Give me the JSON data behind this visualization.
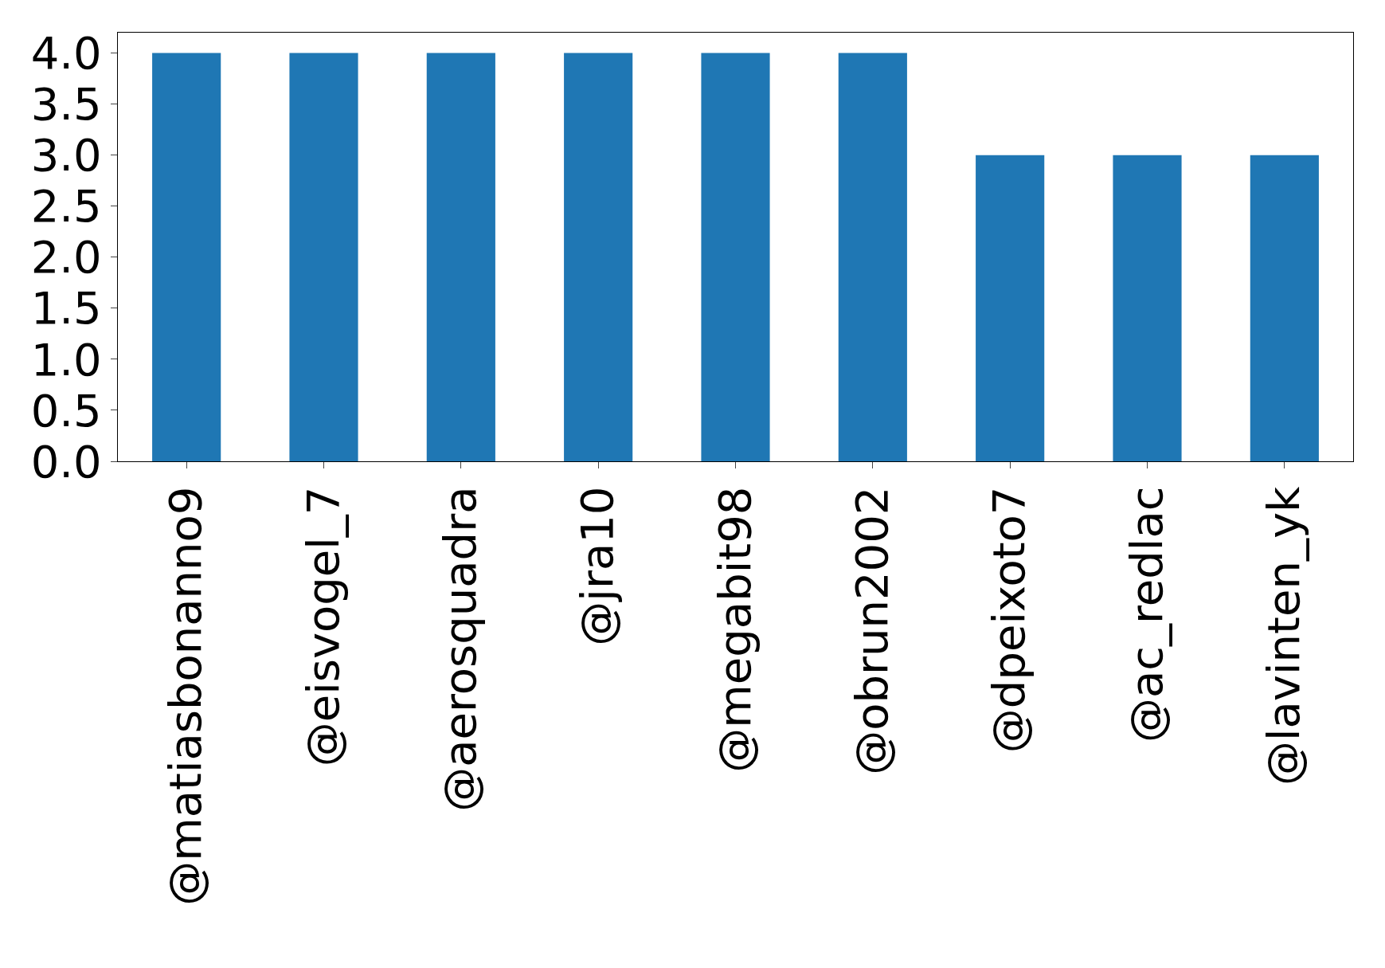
{
  "chart_data": {
    "type": "bar",
    "categories": [
      "@matiasbonanno9",
      "@eisvogel_7",
      "@aerosquadra",
      "@jra10",
      "@megabit98",
      "@obrun2002",
      "@dpeixoto7",
      "@ac_redlac",
      "@lavinten_yk"
    ],
    "values": [
      4,
      4,
      4,
      4,
      4,
      4,
      3,
      3,
      3
    ],
    "color": "#1f77b4",
    "ylim": [
      0,
      4.2
    ],
    "yticks": [
      {
        "value": 0,
        "label": "0.0"
      },
      {
        "value": 0.5,
        "label": "0.5"
      },
      {
        "value": 1,
        "label": "1.0"
      },
      {
        "value": 1.5,
        "label": "1.5"
      },
      {
        "value": 2,
        "label": "2.0"
      },
      {
        "value": 2.5,
        "label": "2.5"
      },
      {
        "value": 3,
        "label": "3.0"
      },
      {
        "value": 3.5,
        "label": "3.5"
      },
      {
        "value": 4,
        "label": "4.0"
      }
    ],
    "grid": false
  }
}
